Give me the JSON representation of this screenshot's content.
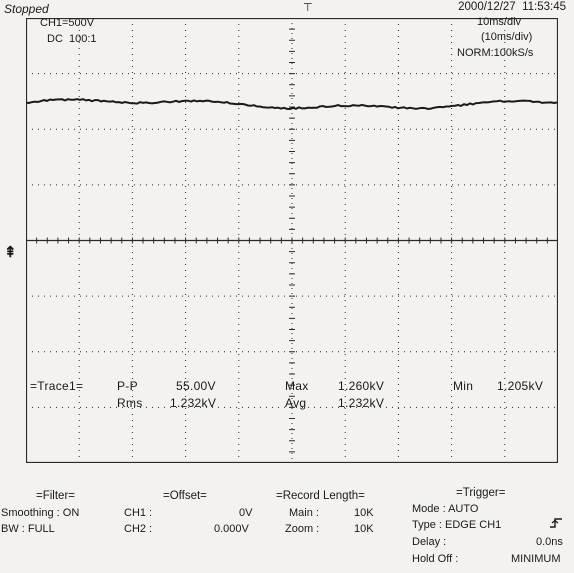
{
  "header": {
    "status": "Stopped",
    "datetime": "2000/12/27  11:53:45",
    "channel": "CH1=500V",
    "coupling": "DC  100:1",
    "timebase": "10ms/div",
    "timebase_sub": "(10ms/div)",
    "acq_mode": "NORM:100kS/s"
  },
  "measurements": {
    "trace_label": "=Trace1=",
    "pp_label": "P-P",
    "pp_value": "55.00V",
    "rms_label": "Rms",
    "rms_value": "1.232kV",
    "max_label": "Max",
    "max_value": "1.260kV",
    "avg_label": "Avg",
    "avg_value": "1.232kV",
    "min_label": "Min",
    "min_value": "1.205kV"
  },
  "filter": {
    "title": "=Filter=",
    "smoothing_label": "Smoothing : ON",
    "bw_label": "BW : FULL"
  },
  "offset": {
    "title": "=Offset=",
    "ch1_label": "CH1 :",
    "ch1_value": "0V",
    "ch2_label": "CH2 :",
    "ch2_value": "0.000V"
  },
  "record_length": {
    "title": "=Record Length=",
    "main_label": "Main :",
    "main_value": "10K",
    "zoom_label": "Zoom :",
    "zoom_value": "10K"
  },
  "trigger": {
    "title": "=Trigger=",
    "mode": "Mode : AUTO",
    "type": "Type : EDGE CH1",
    "delay_label": "Delay :",
    "delay_value": "0.0ns",
    "holdoff_label": "Hold Off :",
    "holdoff_value": "MINIMUM"
  },
  "waveform": {
    "level_div": 2.45,
    "variation_div": 0.12
  },
  "colors": {
    "background": "#f3f2ee",
    "ink": "#1a1a1a",
    "grid": "#2a2a2a"
  }
}
